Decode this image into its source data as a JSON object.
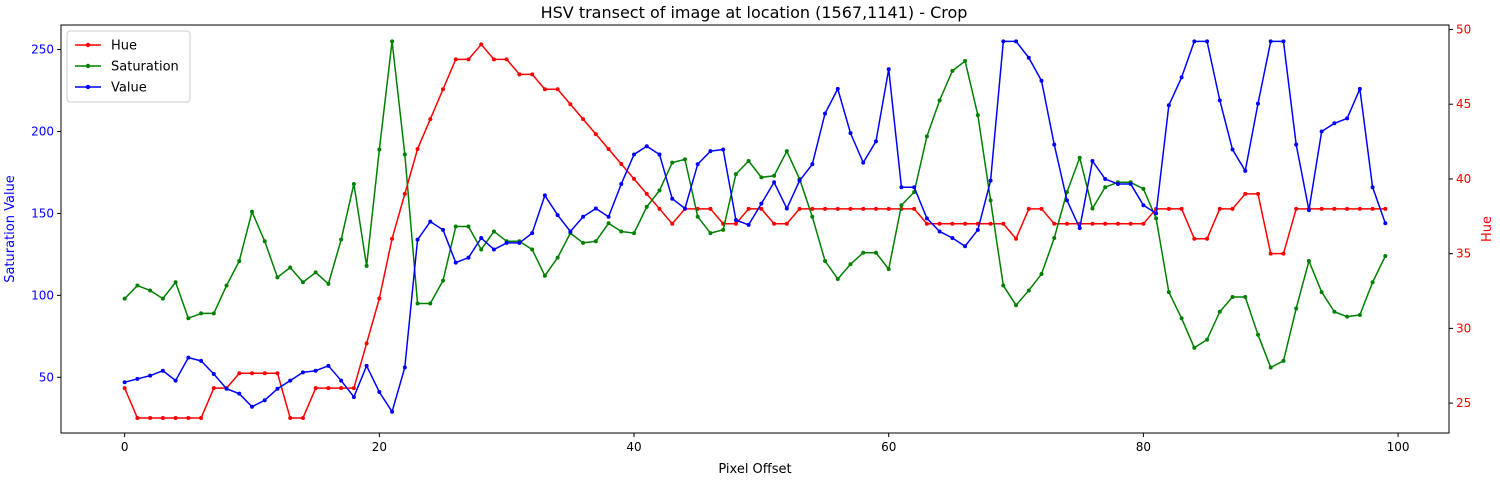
{
  "chart_data": {
    "type": "line",
    "title": "HSV transect of image at location (1567,1141) - Crop",
    "xlabel": "Pixel Offset",
    "ylabel_left": "Saturation Value",
    "ylabel_right": "Hue",
    "xlim": [
      -5,
      104
    ],
    "ylim_left": [
      16,
      265
    ],
    "ylim_right": [
      23,
      50.3
    ],
    "xticks": [
      0,
      20,
      40,
      60,
      80,
      100
    ],
    "yticks_left": [
      50,
      100,
      150,
      200,
      250
    ],
    "yticks_right": [
      25,
      30,
      35,
      40,
      45,
      50
    ],
    "grid": false,
    "legend_position": "top-left",
    "colors": {
      "hue": "#ff0000",
      "saturation": "#008000",
      "value": "#0000ff",
      "left_axis": "#0000ff",
      "right_axis": "#ff0000"
    },
    "x": [
      0,
      1,
      2,
      3,
      4,
      5,
      6,
      7,
      8,
      9,
      10,
      11,
      12,
      13,
      14,
      15,
      16,
      17,
      18,
      19,
      20,
      21,
      22,
      23,
      24,
      25,
      26,
      27,
      28,
      29,
      30,
      31,
      32,
      33,
      34,
      35,
      36,
      37,
      38,
      39,
      40,
      41,
      42,
      43,
      44,
      45,
      46,
      47,
      48,
      49,
      50,
      51,
      52,
      53,
      54,
      55,
      56,
      57,
      58,
      59,
      60,
      61,
      62,
      63,
      64,
      65,
      66,
      67,
      68,
      69,
      70,
      71,
      72,
      73,
      74,
      75,
      76,
      77,
      78,
      79,
      80,
      81,
      82,
      83,
      84,
      85,
      86,
      87,
      88,
      89,
      90,
      91,
      92,
      93,
      94,
      95,
      96,
      97,
      98,
      99
    ],
    "series": [
      {
        "name": "Hue",
        "axis": "right",
        "color": "#ff0000",
        "values": [
          26,
          24,
          24,
          24,
          24,
          24,
          24,
          26,
          26,
          27,
          27,
          27,
          27,
          24,
          24,
          26,
          26,
          26,
          26,
          29,
          32,
          36,
          39,
          42,
          44,
          46,
          48,
          48,
          49,
          48,
          48,
          47,
          47,
          46,
          46,
          45,
          44,
          43,
          42,
          41,
          40,
          39,
          38,
          37,
          38,
          38,
          38,
          37,
          37,
          38,
          38,
          37,
          37,
          38,
          38,
          38,
          38,
          38,
          38,
          38,
          38,
          38,
          38,
          37,
          37,
          37,
          37,
          37,
          37,
          37,
          36,
          38,
          38,
          37,
          37,
          37,
          37,
          37,
          37,
          37,
          37,
          38,
          38,
          38,
          36,
          36,
          38,
          38,
          39,
          39,
          35,
          35,
          38,
          38,
          38,
          38,
          38,
          38,
          38,
          38
        ]
      },
      {
        "name": "Saturation",
        "axis": "left",
        "color": "#008000",
        "values": [
          98,
          106,
          103,
          98,
          108,
          86,
          89,
          89,
          106,
          121,
          151,
          133,
          111,
          117,
          108,
          114,
          107,
          134,
          168,
          118,
          189,
          255,
          186,
          95,
          95,
          109,
          142,
          142,
          128,
          139,
          133,
          133,
          128,
          112,
          123,
          138,
          132,
          133,
          144,
          139,
          138,
          154,
          164,
          181,
          183,
          148,
          138,
          140,
          174,
          182,
          172,
          173,
          188,
          171,
          148,
          121,
          110,
          119,
          126,
          126,
          116,
          155,
          163,
          197,
          219,
          237,
          243,
          210,
          158,
          106,
          94,
          103,
          113,
          135,
          163,
          184,
          153,
          166,
          169,
          169,
          165,
          147,
          102,
          86,
          68,
          73,
          90,
          99,
          99,
          76,
          56,
          60,
          92,
          121,
          102,
          90,
          87,
          88,
          108,
          124
        ]
      },
      {
        "name": "Value",
        "axis": "left",
        "color": "#0000ff",
        "values": [
          47,
          49,
          51,
          54,
          48,
          62,
          60,
          52,
          43,
          40,
          32,
          36,
          43,
          48,
          53,
          54,
          57,
          48,
          38,
          57,
          41,
          29,
          56,
          134,
          145,
          140,
          120,
          123,
          135,
          128,
          132,
          132,
          138,
          161,
          149,
          139,
          148,
          153,
          148,
          168,
          186,
          191,
          186,
          159,
          153,
          180,
          188,
          189,
          146,
          143,
          156,
          169,
          153,
          170,
          180,
          211,
          226,
          199,
          181,
          194,
          238,
          166,
          166,
          147,
          139,
          135,
          130,
          140,
          170,
          255,
          255,
          245,
          231,
          192,
          158,
          141,
          182,
          171,
          168,
          168,
          155,
          150,
          216,
          233,
          255,
          255,
          219,
          189,
          176,
          217,
          255,
          255,
          192,
          152,
          200,
          205,
          208,
          226,
          166,
          144
        ]
      }
    ]
  }
}
